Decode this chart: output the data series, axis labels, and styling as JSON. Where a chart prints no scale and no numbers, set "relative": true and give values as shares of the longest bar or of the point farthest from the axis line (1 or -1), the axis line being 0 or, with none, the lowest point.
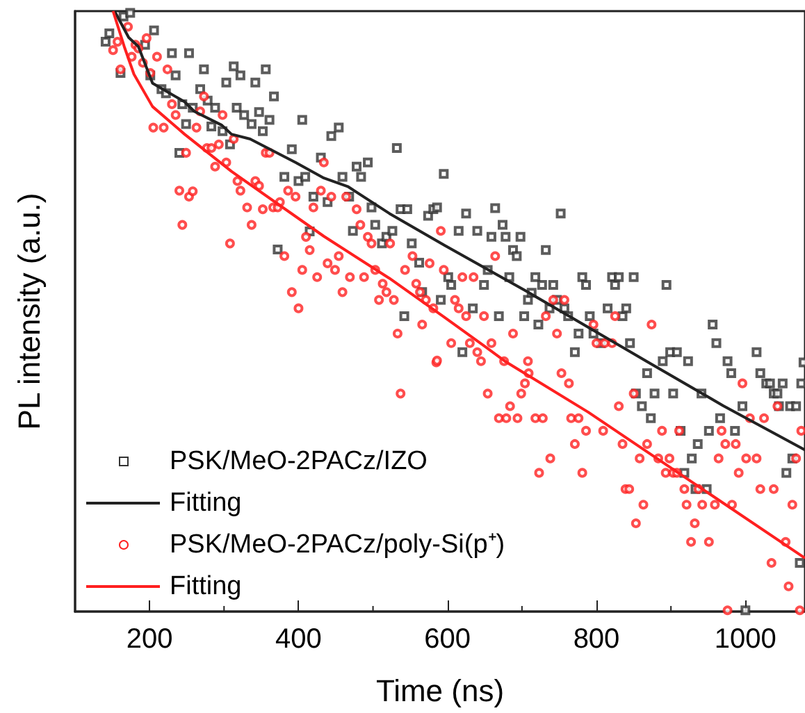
{
  "chart_data": {
    "type": "scatter",
    "relative": true,
    "xlabel": "Time (ns)",
    "ylabel": "PL intensity (a.u.)",
    "xlim": [
      100,
      1080
    ],
    "xticks": [
      200,
      400,
      600,
      800,
      1000
    ],
    "grid": false,
    "legend": "bottom left",
    "series": [
      {
        "name": "PSK/MeO-2PACz/IZO",
        "marker": "square",
        "color": "#333333",
        "x": [
          141,
          146,
          161,
          165,
          174,
          194,
          201,
          206,
          216,
          222,
          230,
          235,
          240,
          244,
          249,
          253,
          258,
          268,
          273,
          278,
          283,
          288,
          298,
          303,
          308,
          313,
          317,
          322,
          327,
          337,
          342,
          347,
          352,
          356,
          361,
          367,
          372,
          381,
          391,
          400,
          405,
          409,
          415,
          420,
          430,
          439,
          444,
          454,
          459,
          468,
          473,
          478,
          484,
          493,
          498,
          503,
          512,
          518,
          526,
          532,
          537,
          542,
          546,
          552,
          562,
          566,
          574,
          581,
          586,
          591,
          595,
          601,
          605,
          615,
          620,
          625,
          634,
          640,
          649,
          654,
          659,
          664,
          669,
          674,
          678,
          683,
          688,
          693,
          698,
          703,
          708,
          713,
          718,
          722,
          727,
          732,
          737,
          742,
          747,
          752,
          757,
          762,
          771,
          776,
          781,
          786,
          791,
          796,
          806,
          815,
          821,
          825,
          830,
          835,
          840,
          845,
          850,
          853,
          861,
          868,
          873,
          878,
          889,
          894,
          899,
          903,
          908,
          913,
          918,
          923,
          928,
          933,
          936,
          941,
          948,
          951,
          956,
          961,
          966,
          976,
          981,
          986,
          996,
          1000,
          1015,
          1020,
          1028,
          1033,
          1038,
          1043,
          1045,
          1050,
          1055,
          1060,
          1063,
          1068,
          1073,
          1075,
          1078
        ],
        "values": [
          0.949,
          0.963,
          0.897,
          0.991,
          0.997,
          0.944,
          0.893,
          0.968,
          0.87,
          0.863,
          0.93,
          0.893,
          0.764,
          0.845,
          0.812,
          0.93,
          0.839,
          0.87,
          0.903,
          0.851,
          0.808,
          0.839,
          0.8,
          0.881,
          0.778,
          0.908,
          0.839,
          0.893,
          0.827,
          0.812,
          0.881,
          0.832,
          0.8,
          0.903,
          0.819,
          0.858,
          0.603,
          0.724,
          0.77,
          0.717,
          0.819,
          0.724,
          0.633,
          0.691,
          0.756,
          0.682,
          0.792,
          0.806,
          0.724,
          0.691,
          0.634,
          0.741,
          0.724,
          0.748,
          0.673,
          0.644,
          0.613,
          0.624,
          0.634,
          0.772,
          0.67,
          0.492,
          0.67,
          0.613,
          0.581,
          0.532,
          0.659,
          0.67,
          0.673,
          0.519,
          0.729,
          0.557,
          0.544,
          0.634,
          0.432,
          0.663,
          0.505,
          0.634,
          0.544,
          0.569,
          0.624,
          0.672,
          0.492,
          0.644,
          0.624,
          0.557,
          0.602,
          0.592,
          0.624,
          0.492,
          0.519,
          0.531,
          0.557,
          0.478,
          0.544,
          0.602,
          0.505,
          0.544,
          0.519,
          0.663,
          0.505,
          0.492,
          0.432,
          0.463,
          0.557,
          0.544,
          0.492,
          0.463,
          0.447,
          0.505,
          0.557,
          0.544,
          0.557,
          0.492,
          0.505,
          0.447,
          0.557,
          0.363,
          0.342,
          0.397,
          0.322,
          0.363,
          0.417,
          0.544,
          0.432,
          0.363,
          0.432,
          0.301,
          0.231,
          0.417,
          0.255,
          0.204,
          0.279,
          0.363,
          0.204,
          0.301,
          0.478,
          0.447,
          0.322,
          0.417,
          0.397,
          0.301,
          0.342,
          0.002,
          0.432,
          0.397,
          0.38,
          0.38,
          0.363,
          0.363,
          0.342,
          0.38,
          0.231,
          0.342,
          0.255,
          0.342,
          0.081,
          0.38,
          0.415
        ]
      },
      {
        "name": "Fitting",
        "type": "line",
        "marker": "none",
        "color": "#222222",
        "x": [
          153,
          172,
          185,
          204,
          247,
          260,
          297,
          310,
          335,
          396,
          434,
          466,
          522,
          596,
          708,
          867,
          970,
          1080
        ],
        "values": [
          1.0,
          0.956,
          0.941,
          0.88,
          0.849,
          0.833,
          0.81,
          0.795,
          0.787,
          0.748,
          0.722,
          0.708,
          0.663,
          0.61,
          0.532,
          0.417,
          0.343,
          0.269
        ]
      },
      {
        "name": "PSK/MeO-2PACz/poly-Si(p⁺)",
        "marker": "circle",
        "color": "#ff2020",
        "x": [
          151,
          157,
          161,
          171,
          176,
          181,
          185,
          191,
          196,
          201,
          205,
          210,
          219,
          224,
          230,
          235,
          240,
          244,
          249,
          253,
          258,
          263,
          268,
          273,
          277,
          283,
          288,
          293,
          298,
          303,
          308,
          313,
          318,
          322,
          331,
          337,
          342,
          347,
          352,
          356,
          361,
          366,
          372,
          375,
          381,
          386,
          391,
          396,
          400,
          405,
          410,
          415,
          420,
          425,
          430,
          434,
          439,
          444,
          449,
          454,
          459,
          464,
          469,
          478,
          483,
          488,
          493,
          498,
          503,
          508,
          513,
          518,
          523,
          528,
          533,
          537,
          543,
          553,
          558,
          563,
          566,
          571,
          576,
          581,
          585,
          586,
          591,
          595,
          605,
          610,
          615,
          620,
          625,
          630,
          635,
          640,
          645,
          649,
          654,
          659,
          664,
          669,
          676,
          679,
          684,
          688,
          694,
          699,
          704,
          708,
          709,
          718,
          723,
          728,
          732,
          738,
          742,
          747,
          753,
          757,
          763,
          766,
          771,
          776,
          781,
          786,
          796,
          800,
          809,
          811,
          821,
          825,
          830,
          835,
          839,
          844,
          850,
          853,
          858,
          863,
          868,
          874,
          883,
          888,
          893,
          898,
          903,
          908,
          911,
          918,
          921,
          927,
          932,
          937,
          942,
          951,
          959,
          964,
          968,
          973,
          976,
          982,
          987,
          991,
          996,
          1001,
          1006,
          1015,
          1020,
          1025,
          1035,
          1038,
          1043,
          1054,
          1058,
          1063,
          1068,
          1073,
          1075
        ],
        "values": [
          0.935,
          0.949,
          0.903,
          0.974,
          0.924,
          0.944,
          0.938,
          0.914,
          0.955,
          0.897,
          0.806,
          0.924,
          0.806,
          0.903,
          0.845,
          0.827,
          0.701,
          0.644,
          0.764,
          0.691,
          0.7,
          0.806,
          0.833,
          0.858,
          0.772,
          0.772,
          0.741,
          0.778,
          0.827,
          0.748,
          0.613,
          0.787,
          0.717,
          0.701,
          0.673,
          0.644,
          0.717,
          0.709,
          0.67,
          0.764,
          0.764,
          0.673,
          0.673,
          0.682,
          0.592,
          0.701,
          0.532,
          0.691,
          0.505,
          0.569,
          0.624,
          0.602,
          0.673,
          0.557,
          0.701,
          0.748,
          0.58,
          0.691,
          0.569,
          0.592,
          0.532,
          0.691,
          0.557,
          0.67,
          0.644,
          0.557,
          0.624,
          0.613,
          0.569,
          0.519,
          0.546,
          0.532,
          0.613,
          0.519,
          0.463,
          0.363,
          0.569,
          0.592,
          0.546,
          0.532,
          0.478,
          0.519,
          0.58,
          0.505,
          0.415,
          0.418,
          0.634,
          0.569,
          0.447,
          0.519,
          0.505,
          0.557,
          0.492,
          0.447,
          0.557,
          0.432,
          0.417,
          0.492,
          0.363,
          0.447,
          0.592,
          0.322,
          0.417,
          0.322,
          0.342,
          0.463,
          0.322,
          0.363,
          0.38,
          0.417,
          0.397,
          0.322,
          0.231,
          0.322,
          0.492,
          0.255,
          0.519,
          0.463,
          0.397,
          0.519,
          0.38,
          0.322,
          0.279,
          0.322,
          0.231,
          0.301,
          0.478,
          0.447,
          0.301,
          0.447,
          0.447,
          0.492,
          0.342,
          0.279,
          0.204,
          0.204,
          0.363,
          0.147,
          0.255,
          0.178,
          0.279,
          0.478,
          0.255,
          0.301,
          0.231,
          0.255,
          0.231,
          0.231,
          0.301,
          0.204,
          0.178,
          0.116,
          0.147,
          0.204,
          0.178,
          0.116,
          0.178,
          0.255,
          0.301,
          0.279,
          0.002,
          0.178,
          0.279,
          0.231,
          0.38,
          0.255,
          0.322,
          0.255,
          0.204,
          0.322,
          0.081,
          0.204,
          0.342,
          0.116,
          0.042,
          0.178,
          0.255,
          0.002,
          0.301
        ]
      },
      {
        "name": "Fitting",
        "type": "line",
        "marker": "none",
        "color": "#ff2020",
        "x": [
          151,
          166,
          179,
          204,
          247,
          310,
          434,
          522,
          596,
          652,
          677,
          789,
          1080
        ],
        "values": [
          1.0,
          0.941,
          0.895,
          0.841,
          0.795,
          0.733,
          0.625,
          0.555,
          0.49,
          0.44,
          0.417,
          0.332,
          0.089
        ]
      }
    ]
  }
}
